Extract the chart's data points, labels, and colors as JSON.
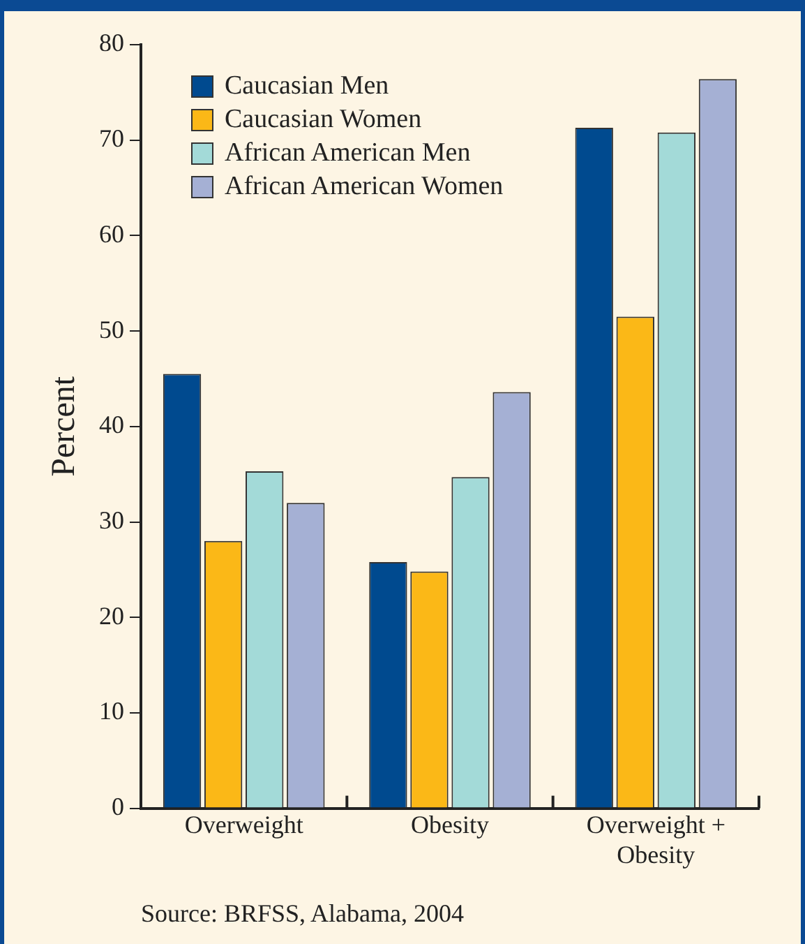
{
  "chart_data": {
    "type": "bar",
    "ylabel": "Percent",
    "categories": [
      "Overweight",
      "Obesity",
      "Overweight + Obesity"
    ],
    "series": [
      {
        "name": "Caucasian Men",
        "color": "#004a8f",
        "values": [
          45.5,
          25.8,
          71.3
        ]
      },
      {
        "name": "Caucasian Women",
        "color": "#fbb817",
        "values": [
          28.0,
          24.8,
          51.5
        ]
      },
      {
        "name": "African American Men",
        "color": "#a3dad8",
        "values": [
          35.3,
          34.7,
          70.8
        ]
      },
      {
        "name": "African American Women",
        "color": "#a5b0d4",
        "values": [
          32.0,
          43.6,
          76.4
        ]
      }
    ],
    "ylim": [
      0,
      80
    ],
    "yticks": [
      0,
      10,
      20,
      30,
      40,
      50,
      60,
      70,
      80
    ],
    "grid": false,
    "legend": "top left",
    "annotations": [
      "Source: BRFSS, Alabama, 2004"
    ]
  }
}
